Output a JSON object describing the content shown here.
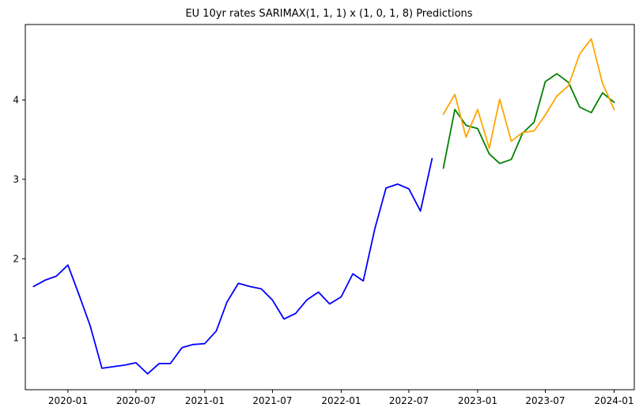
{
  "chart_data": {
    "type": "line",
    "title": "EU 10yr rates SARIMAX(1, 1, 1) x (1, 0, 1, 8) Predictions",
    "xlabel": "",
    "ylabel": "",
    "xlim": [
      "2019-09-09",
      "2024-02-24"
    ],
    "ylim": [
      0.35,
      4.95
    ],
    "x_ticks": [
      {
        "date": "2020-01-01",
        "label": "2020-01"
      },
      {
        "date": "2020-07-01",
        "label": "2020-07"
      },
      {
        "date": "2021-01-01",
        "label": "2021-01"
      },
      {
        "date": "2021-07-01",
        "label": "2021-07"
      },
      {
        "date": "2022-01-01",
        "label": "2022-01"
      },
      {
        "date": "2022-07-01",
        "label": "2022-07"
      },
      {
        "date": "2023-01-01",
        "label": "2023-01"
      },
      {
        "date": "2023-07-01",
        "label": "2023-07"
      },
      {
        "date": "2024-01-01",
        "label": "2024-01"
      }
    ],
    "y_ticks": [
      {
        "value": 1,
        "label": "1"
      },
      {
        "value": 2,
        "label": "2"
      },
      {
        "value": 3,
        "label": "3"
      },
      {
        "value": 4,
        "label": "4"
      }
    ],
    "grid": false,
    "legend": false,
    "series": [
      {
        "color": "#0000ff",
        "x": [
          "2019-10-01",
          "2019-11-01",
          "2019-12-01",
          "2020-01-01",
          "2020-02-01",
          "2020-03-01",
          "2020-04-01",
          "2020-05-01",
          "2020-06-01",
          "2020-07-01",
          "2020-08-01",
          "2020-09-01",
          "2020-10-01",
          "2020-11-01",
          "2020-12-01",
          "2021-01-01",
          "2021-02-01",
          "2021-03-01",
          "2021-04-01",
          "2021-05-01",
          "2021-06-01",
          "2021-07-01",
          "2021-08-01",
          "2021-09-01",
          "2021-10-01",
          "2021-11-01",
          "2021-12-01",
          "2022-01-01",
          "2022-02-01",
          "2022-03-01",
          "2022-04-01",
          "2022-05-01",
          "2022-06-01",
          "2022-07-01",
          "2022-08-01",
          "2022-09-01"
        ],
        "values": [
          1.65,
          1.73,
          1.78,
          1.92,
          1.53,
          1.15,
          0.62,
          0.64,
          0.66,
          0.69,
          0.55,
          0.68,
          0.68,
          0.88,
          0.92,
          0.93,
          1.09,
          1.45,
          1.69,
          1.65,
          1.62,
          1.48,
          1.24,
          1.31,
          1.48,
          1.58,
          1.43,
          1.52,
          1.81,
          1.72,
          2.38,
          2.89,
          2.94,
          2.88,
          2.6,
          3.26
        ]
      },
      {
        "color": "#008000",
        "x": [
          "2022-10-01",
          "2022-11-01",
          "2022-12-01",
          "2023-01-01",
          "2023-02-01",
          "2023-03-01",
          "2023-04-01",
          "2023-05-01",
          "2023-06-01",
          "2023-07-01",
          "2023-08-01",
          "2023-09-01",
          "2023-10-01",
          "2023-11-01",
          "2023-12-01",
          "2024-01-01"
        ],
        "values": [
          3.14,
          3.88,
          3.68,
          3.64,
          3.32,
          3.2,
          3.25,
          3.58,
          3.72,
          4.23,
          4.33,
          4.22,
          3.91,
          3.84,
          4.09,
          3.97
        ]
      },
      {
        "color": "#ffa500",
        "x": [
          "2022-10-01",
          "2022-11-01",
          "2022-12-01",
          "2023-01-01",
          "2023-02-01",
          "2023-03-01",
          "2023-04-01",
          "2023-05-01",
          "2023-06-01",
          "2023-07-01",
          "2023-08-01",
          "2023-09-01",
          "2023-10-01",
          "2023-11-01",
          "2023-12-01",
          "2024-01-01"
        ],
        "values": [
          3.82,
          4.07,
          3.53,
          3.88,
          3.39,
          4.01,
          3.48,
          3.59,
          3.61,
          3.81,
          4.05,
          4.18,
          4.58,
          4.77,
          4.21,
          3.88
        ]
      }
    ]
  }
}
